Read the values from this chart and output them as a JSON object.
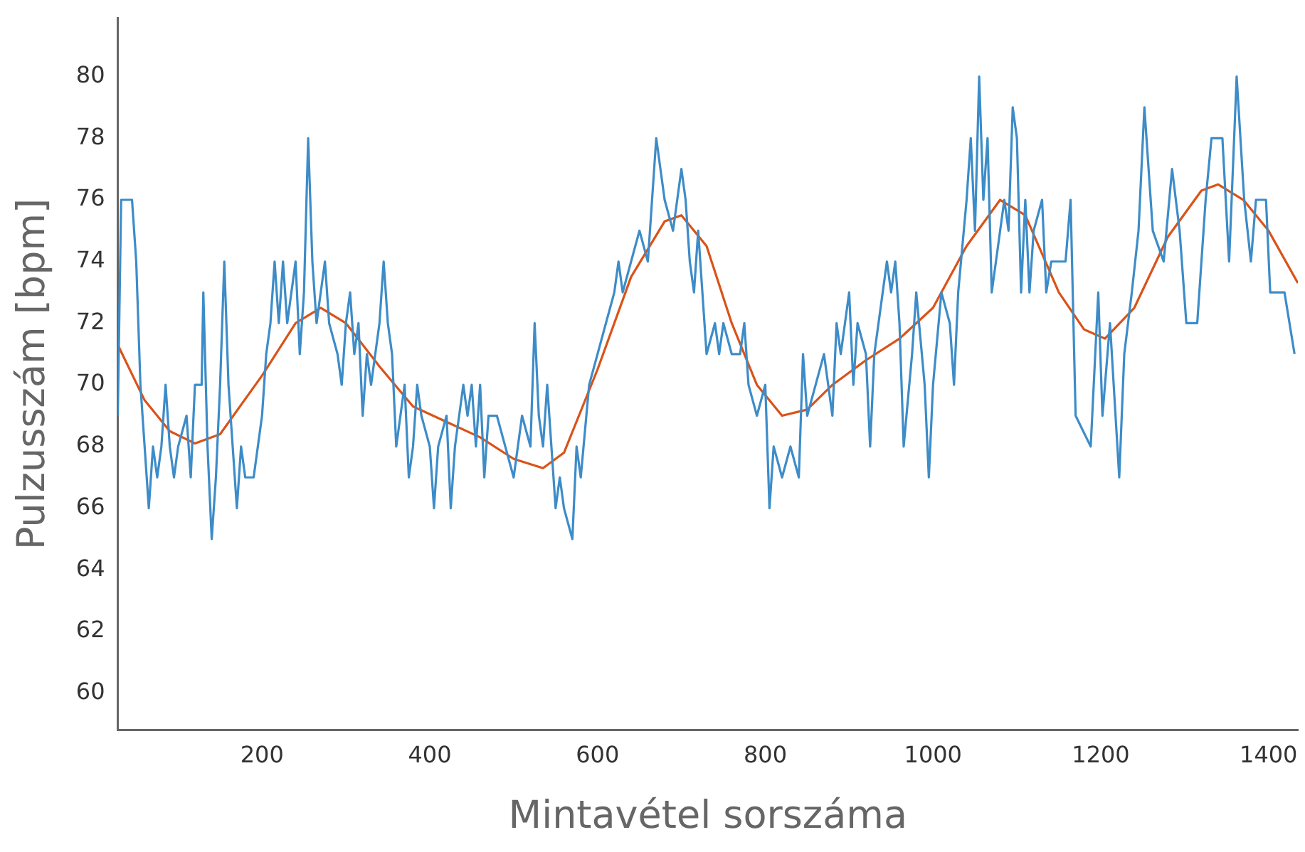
{
  "chart_data": {
    "type": "line",
    "xlabel": "Mintavétel sorszáma",
    "ylabel": "Pulzusszám [bpm]",
    "xlim": [
      28,
      1435
    ],
    "ylim": [
      58.8,
      81.9
    ],
    "xticks": [
      200,
      400,
      600,
      800,
      1000,
      1200,
      1400
    ],
    "yticks": [
      60,
      62,
      64,
      66,
      68,
      70,
      72,
      74,
      76,
      78,
      80
    ],
    "series": [
      {
        "color": "#3d8cc8",
        "x": [
          28,
          32,
          45,
          50,
          55,
          60,
          65,
          70,
          75,
          80,
          85,
          90,
          95,
          100,
          110,
          115,
          120,
          128,
          130,
          135,
          140,
          145,
          150,
          155,
          160,
          165,
          170,
          175,
          180,
          190,
          200,
          205,
          210,
          215,
          220,
          225,
          230,
          240,
          245,
          250,
          255,
          260,
          265,
          270,
          275,
          280,
          290,
          295,
          300,
          305,
          310,
          315,
          320,
          325,
          330,
          340,
          345,
          350,
          355,
          360,
          370,
          375,
          380,
          385,
          390,
          400,
          405,
          410,
          420,
          425,
          430,
          440,
          445,
          450,
          455,
          460,
          465,
          470,
          480,
          490,
          500,
          510,
          520,
          525,
          530,
          535,
          540,
          545,
          550,
          555,
          560,
          570,
          575,
          580,
          590,
          600,
          610,
          620,
          625,
          630,
          640,
          650,
          660,
          665,
          670,
          675,
          680,
          690,
          700,
          705,
          710,
          715,
          720,
          725,
          730,
          740,
          745,
          750,
          760,
          770,
          775,
          780,
          790,
          800,
          805,
          810,
          820,
          830,
          840,
          845,
          850,
          860,
          870,
          880,
          885,
          890,
          900,
          905,
          910,
          920,
          925,
          930,
          935,
          945,
          950,
          955,
          960,
          965,
          975,
          980,
          990,
          995,
          1000,
          1010,
          1020,
          1025,
          1030,
          1040,
          1045,
          1050,
          1055,
          1060,
          1065,
          1070,
          1080,
          1085,
          1090,
          1095,
          1100,
          1105,
          1110,
          1115,
          1120,
          1130,
          1135,
          1141,
          1158,
          1164,
          1170,
          1188,
          1197,
          1202,
          1211,
          1222,
          1228,
          1237,
          1245,
          1252,
          1257,
          1262,
          1275,
          1285,
          1294,
          1302,
          1315,
          1325,
          1332,
          1345,
          1353,
          1362,
          1371,
          1379,
          1385,
          1397,
          1402,
          1407,
          1419,
          1431
        ],
        "values": [
          69,
          76,
          76,
          74,
          70,
          68,
          66,
          68,
          67,
          68,
          70,
          68,
          67,
          68,
          69,
          67,
          70,
          70,
          73,
          68,
          65,
          67,
          70,
          74,
          70,
          68,
          66,
          68,
          67,
          67,
          69,
          71,
          72,
          74,
          72,
          74,
          72,
          74,
          71,
          73,
          78,
          74,
          72,
          73,
          74,
          72,
          71,
          70,
          72,
          73,
          71,
          72,
          69,
          71,
          70,
          72,
          74,
          72,
          71,
          68,
          70,
          67,
          68,
          70,
          69,
          68,
          66,
          68,
          69,
          66,
          68,
          70,
          69,
          70,
          68,
          70,
          67,
          69,
          69,
          68,
          67,
          69,
          68,
          72,
          69,
          68,
          70,
          68,
          66,
          67,
          66,
          65,
          68,
          67,
          70,
          71,
          72,
          73,
          74,
          73,
          74,
          75,
          74,
          76,
          78,
          77,
          76,
          75,
          77,
          76,
          74,
          73,
          75,
          73,
          71,
          72,
          71,
          72,
          71,
          71,
          72,
          70,
          69,
          70,
          66,
          68,
          67,
          68,
          67,
          71,
          69,
          70,
          71,
          69,
          72,
          71,
          73,
          70,
          72,
          71,
          68,
          71,
          72,
          74,
          73,
          74,
          72,
          68,
          71,
          73,
          70,
          67,
          70,
          73,
          72,
          70,
          73,
          76,
          78,
          75,
          80,
          76,
          78,
          73,
          75,
          76,
          75,
          79,
          78,
          73,
          76,
          73,
          75,
          76,
          73,
          74,
          74,
          76,
          69,
          68,
          73,
          69,
          72,
          67,
          71,
          73,
          75,
          79,
          77,
          75,
          74,
          77,
          75,
          72,
          72,
          76,
          78,
          78,
          74,
          80,
          76,
          74,
          76,
          76,
          73,
          73,
          73,
          71
        ]
      },
      {
        "color": "#d95319",
        "x": [
          28,
          60,
          90,
          120,
          150,
          200,
          240,
          270,
          300,
          340,
          380,
          420,
          460,
          500,
          535,
          560,
          600,
          640,
          680,
          700,
          730,
          760,
          790,
          820,
          850,
          880,
          920,
          960,
          1000,
          1040,
          1080,
          1110,
          1150,
          1180,
          1205,
          1240,
          1280,
          1320,
          1340,
          1370,
          1400,
          1435
        ],
        "values": [
          71.3,
          69.5,
          68.5,
          68.1,
          68.4,
          70.3,
          72,
          72.5,
          72,
          70.6,
          69.3,
          68.8,
          68.3,
          67.6,
          67.3,
          67.8,
          70.5,
          73.5,
          75.3,
          75.5,
          74.5,
          72,
          70,
          69,
          69.2,
          70,
          70.8,
          71.5,
          72.5,
          74.5,
          76,
          75.5,
          73,
          71.8,
          71.5,
          72.5,
          74.8,
          76.3,
          76.5,
          76,
          75,
          73.3
        ]
      }
    ]
  }
}
